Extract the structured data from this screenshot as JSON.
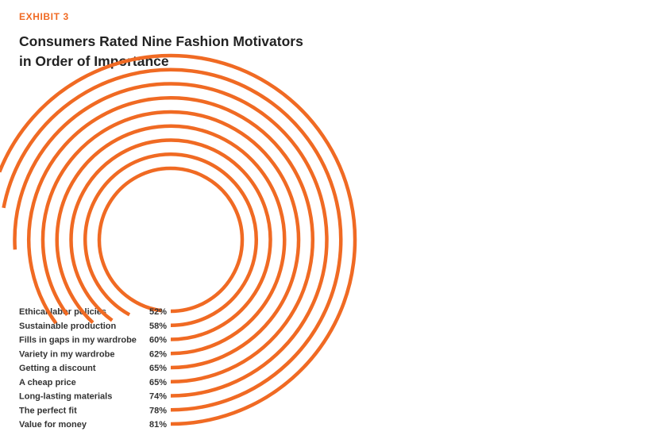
{
  "exhibit_label": "EXHIBIT 3",
  "title_line1": "Consumers Rated Nine Fashion Motivators",
  "title_line2": "in Order of Importance",
  "colors": {
    "arc": "#f06a23",
    "title": "#222222",
    "label": "#333333",
    "exhibit": "#f06a23"
  },
  "chart_data": {
    "type": "radial-bar",
    "title": "Consumers Rated Nine Fashion Motivators in Order of Importance",
    "unit": "%",
    "categories": [
      "Ethical labor policies",
      "Sustainable production",
      "Fills in gaps in my wardrobe",
      "Variety in my wardrobe",
      "Getting a discount",
      "A cheap price",
      "Long-lasting materials",
      "The perfect fit",
      "Value for money"
    ],
    "values": [
      52,
      58,
      60,
      62,
      65,
      65,
      74,
      78,
      81
    ],
    "value_labels": [
      "52%",
      "58%",
      "60%",
      "62%",
      "65%",
      "65%",
      "74%",
      "78%",
      "81%"
    ]
  }
}
